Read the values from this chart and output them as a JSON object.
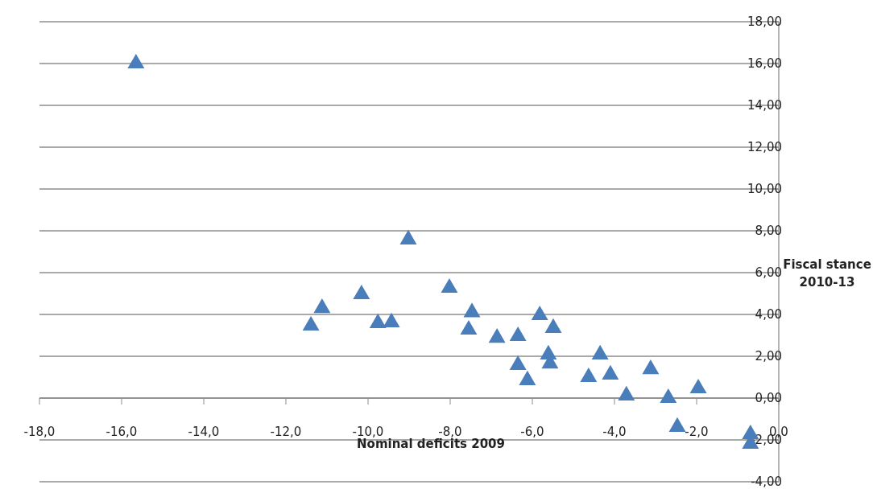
{
  "chart_data": {
    "type": "scatter",
    "xlabel": "Nominal deficits 2009",
    "ylabel": "Fiscal stance\n2010-13",
    "marker": "triangle",
    "grid": "y",
    "xlim": [
      -18,
      0
    ],
    "ylim": [
      -4,
      18
    ],
    "xticks": [
      {
        "value": -18,
        "label": "-18,0"
      },
      {
        "value": -16,
        "label": "-16,0"
      },
      {
        "value": -14,
        "label": "-14,0"
      },
      {
        "value": -12,
        "label": "-12,0"
      },
      {
        "value": -10,
        "label": "-10,0"
      },
      {
        "value": -8,
        "label": "-8,0"
      },
      {
        "value": -6,
        "label": "-6,0"
      },
      {
        "value": -4,
        "label": "-4,0"
      },
      {
        "value": -2,
        "label": "-2,0"
      },
      {
        "value": 0,
        "label": "0,0"
      }
    ],
    "yticks": [
      {
        "value": -4,
        "label": "-4,00"
      },
      {
        "value": -2,
        "label": "-2,00"
      },
      {
        "value": 0,
        "label": "0,00"
      },
      {
        "value": 2,
        "label": "2,00"
      },
      {
        "value": 4,
        "label": "4,00"
      },
      {
        "value": 6,
        "label": "6,00"
      },
      {
        "value": 8,
        "label": "8,00"
      },
      {
        "value": 10,
        "label": "10,00"
      },
      {
        "value": 12,
        "label": "12,00"
      },
      {
        "value": 14,
        "label": "14,00"
      },
      {
        "value": 16,
        "label": "16,00"
      },
      {
        "value": 18,
        "label": "18,00"
      }
    ],
    "series": [
      {
        "color": "#4a7ebb",
        "x": [
          -15.65,
          -9.02,
          -11.39,
          -11.12,
          -10.16,
          -9.76,
          -9.43,
          -8.02,
          -7.47,
          -7.55,
          -6.86,
          -6.35,
          -6.35,
          -6.12,
          -5.82,
          -5.49,
          -5.61,
          -5.57,
          -4.63,
          -4.35,
          -4.1,
          -3.71,
          -3.12,
          -2.69,
          -2.47,
          -1.96,
          -0.69,
          -0.69
        ],
        "values": [
          16.0,
          7.58,
          3.46,
          4.3,
          4.96,
          3.58,
          3.62,
          5.27,
          4.1,
          3.27,
          2.88,
          2.96,
          1.58,
          0.85,
          3.96,
          3.35,
          2.08,
          1.65,
          1.0,
          2.08,
          1.12,
          0.12,
          1.38,
          0.0,
          -1.38,
          0.46,
          -1.73,
          -2.19
        ]
      }
    ]
  }
}
